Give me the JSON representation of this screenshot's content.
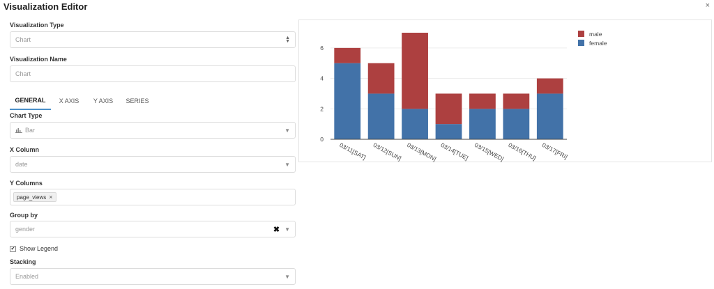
{
  "dialog": {
    "title": "Visualization Editor",
    "close_glyph": "×"
  },
  "fields": {
    "vis_type_label": "Visualization Type",
    "vis_type_value": "Chart",
    "vis_name_label": "Visualization Name",
    "vis_name_placeholder": "Chart",
    "chart_type_label": "Chart Type",
    "chart_type_value": "Bar",
    "x_column_label": "X Column",
    "x_column_value": "date",
    "y_columns_label": "Y Columns",
    "y_columns_tag": "page_views",
    "group_by_label": "Group by",
    "group_by_value": "gender",
    "show_legend_label": "Show Legend",
    "show_legend_checked": true,
    "stacking_label": "Stacking",
    "stacking_value": "Enabled"
  },
  "tabs": [
    {
      "label": "GENERAL",
      "active": true
    },
    {
      "label": "X AXIS",
      "active": false
    },
    {
      "label": "Y AXIS",
      "active": false
    },
    {
      "label": "SERIES",
      "active": false
    }
  ],
  "icons": {
    "close": "close-icon",
    "chevron": "chevron-down-icon",
    "updown": "select-arrows-icon",
    "bar_chart": "bar-chart-icon",
    "clear": "clear-icon",
    "checkbox": "checkbox-icon"
  },
  "chart_data": {
    "type": "bar",
    "stacked": true,
    "categories": [
      "03/11[SAT]",
      "03/12[SUN]",
      "03/13[MON]",
      "03/14[TUE]",
      "03/15[WED]",
      "03/16[THU]",
      "03/17[FRI]"
    ],
    "series": [
      {
        "name": "female",
        "values": [
          5,
          3,
          2,
          1,
          2,
          2,
          3
        ],
        "color": "#4272a8"
      },
      {
        "name": "male",
        "values": [
          1,
          2,
          5,
          2,
          1,
          1,
          1
        ],
        "color": "#ad4040"
      }
    ],
    "ylim": [
      0,
      7
    ],
    "yticks": [
      0,
      2,
      4,
      6
    ],
    "grid": true,
    "legend": "top-right",
    "title": "",
    "xlabel": "",
    "ylabel": ""
  }
}
